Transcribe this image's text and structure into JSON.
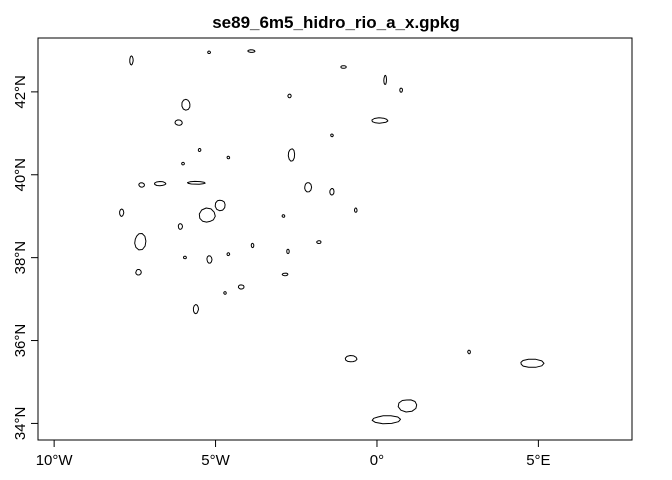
{
  "title": "se89_6m5_hidro_rio_a_x.gpkg",
  "x_axis": {
    "ticks": [
      {
        "value": -10,
        "label": "10°W"
      },
      {
        "value": -5,
        "label": "5°W"
      },
      {
        "value": 0,
        "label": "0°"
      },
      {
        "value": 5,
        "label": "5°E"
      }
    ]
  },
  "y_axis": {
    "ticks": [
      {
        "value": 34,
        "label": "34°N"
      },
      {
        "value": 36,
        "label": "36°N"
      },
      {
        "value": 38,
        "label": "38°N"
      },
      {
        "value": 40,
        "label": "40°N"
      },
      {
        "value": 42,
        "label": "42°N"
      }
    ]
  },
  "extent": {
    "lon": [
      -10.5,
      7.9
    ],
    "lat": [
      33.6,
      43.3
    ]
  },
  "features": [
    {
      "lon": -7.6,
      "lat": 42.75,
      "w": 0.12,
      "h": 0.25
    },
    {
      "lon": -5.2,
      "lat": 42.95,
      "w": 0.08,
      "h": 0.06
    },
    {
      "lon": -3.9,
      "lat": 42.98,
      "w": 0.25,
      "h": 0.06
    },
    {
      "lon": -1.05,
      "lat": 42.6,
      "w": 0.2,
      "h": 0.05
    },
    {
      "lon": 0.25,
      "lat": 42.3,
      "w": 0.07,
      "h": 0.25
    },
    {
      "lon": 0.75,
      "lat": 42.05,
      "w": 0.06,
      "h": 0.12
    },
    {
      "lon": -5.9,
      "lat": 41.7,
      "w": 0.3,
      "h": 0.3
    },
    {
      "lon": -2.7,
      "lat": 41.9,
      "w": 0.12,
      "h": 0.1
    },
    {
      "lon": 0.1,
      "lat": 41.3,
      "w": 0.55,
      "h": 0.15
    },
    {
      "lon": -6.15,
      "lat": 41.25,
      "w": 0.25,
      "h": 0.15
    },
    {
      "lon": -1.4,
      "lat": 40.95,
      "w": 0.05,
      "h": 0.05
    },
    {
      "lon": -5.5,
      "lat": 40.6,
      "w": 0.08,
      "h": 0.08
    },
    {
      "lon": -2.65,
      "lat": 40.5,
      "w": 0.22,
      "h": 0.35
    },
    {
      "lon": -4.6,
      "lat": 40.42,
      "w": 0.08,
      "h": 0.06
    },
    {
      "lon": -6.0,
      "lat": 40.27,
      "w": 0.1,
      "h": 0.06
    },
    {
      "lon": -6.7,
      "lat": 39.78,
      "w": 0.4,
      "h": 0.12
    },
    {
      "lon": -5.6,
      "lat": 39.8,
      "w": 0.6,
      "h": 0.08
    },
    {
      "lon": -7.3,
      "lat": 39.75,
      "w": 0.2,
      "h": 0.12
    },
    {
      "lon": -2.15,
      "lat": 39.7,
      "w": 0.25,
      "h": 0.25
    },
    {
      "lon": -1.4,
      "lat": 39.6,
      "w": 0.15,
      "h": 0.18
    },
    {
      "lon": -4.85,
      "lat": 39.28,
      "w": 0.35,
      "h": 0.3
    },
    {
      "lon": -0.65,
      "lat": 39.15,
      "w": 0.07,
      "h": 0.12
    },
    {
      "lon": -7.9,
      "lat": 39.08,
      "w": 0.15,
      "h": 0.2
    },
    {
      "lon": -5.25,
      "lat": 39.0,
      "w": 0.55,
      "h": 0.4
    },
    {
      "lon": -2.9,
      "lat": 39.0,
      "w": 0.06,
      "h": 0.06
    },
    {
      "lon": -6.1,
      "lat": 38.75,
      "w": 0.15,
      "h": 0.15
    },
    {
      "lon": -7.35,
      "lat": 38.4,
      "w": 0.4,
      "h": 0.45
    },
    {
      "lon": -1.8,
      "lat": 38.38,
      "w": 0.15,
      "h": 0.08
    },
    {
      "lon": -3.85,
      "lat": 38.3,
      "w": 0.07,
      "h": 0.12
    },
    {
      "lon": -2.75,
      "lat": 38.15,
      "w": 0.05,
      "h": 0.12
    },
    {
      "lon": -4.6,
      "lat": 38.08,
      "w": 0.08,
      "h": 0.08
    },
    {
      "lon": -5.95,
      "lat": 38.0,
      "w": 0.1,
      "h": 0.07
    },
    {
      "lon": -5.2,
      "lat": 37.95,
      "w": 0.18,
      "h": 0.2
    },
    {
      "lon": -7.4,
      "lat": 37.65,
      "w": 0.2,
      "h": 0.15
    },
    {
      "lon": -2.85,
      "lat": 37.6,
      "w": 0.2,
      "h": 0.05
    },
    {
      "lon": -4.2,
      "lat": 37.3,
      "w": 0.2,
      "h": 0.12
    },
    {
      "lon": -4.7,
      "lat": 37.15,
      "w": 0.05,
      "h": 0.05
    },
    {
      "lon": -5.6,
      "lat": 36.75,
      "w": 0.18,
      "h": 0.25
    },
    {
      "lon": -0.8,
      "lat": 35.55,
      "w": 0.4,
      "h": 0.18
    },
    {
      "lon": 2.85,
      "lat": 35.72,
      "w": 0.07,
      "h": 0.1
    },
    {
      "lon": 4.75,
      "lat": 35.45,
      "w": 0.85,
      "h": 0.22
    },
    {
      "lon": 0.25,
      "lat": 34.1,
      "w": 1.0,
      "h": 0.22
    },
    {
      "lon": 0.95,
      "lat": 34.45,
      "w": 0.65,
      "h": 0.35
    }
  ]
}
